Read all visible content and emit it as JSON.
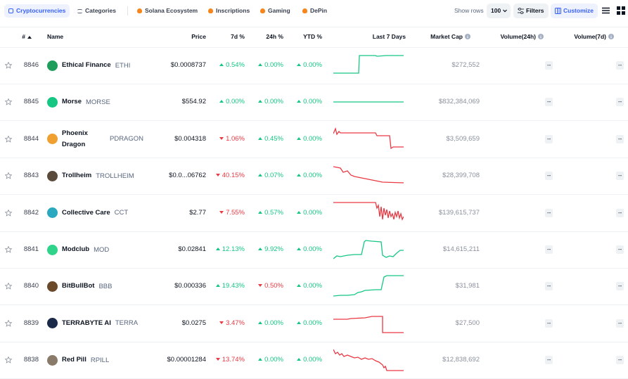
{
  "toolbar": {
    "tabs": [
      "Cryptocurrencies",
      "Categories",
      "Solana Ecosystem",
      "Inscriptions",
      "Gaming",
      "DePin"
    ],
    "show_rows_label": "Show rows",
    "rows_value": "100",
    "filters": "Filters",
    "customize": "Customize"
  },
  "header": [
    "#",
    "Name",
    "Price",
    "7d %",
    "24h %",
    "YTD %",
    "Last 7 Days",
    "Market Cap",
    "Volume(24h)",
    "Volume(7d)"
  ],
  "rows": [
    {
      "rank": "8846",
      "name": "Ethical Finance",
      "symbol": "ETHI",
      "price": "$0.0008737",
      "d7": "0.54%",
      "d7_dir": "up",
      "h24": "0.00%",
      "h24_dir": "up",
      "ytd": "0.00%",
      "ytd_dir": "up",
      "spark_color": "#16c784",
      "market_cap": "$272,552",
      "vol24h": "--",
      "vol7d": "--"
    },
    {
      "rank": "8845",
      "name": "Morse",
      "symbol": "MORSE",
      "price": "$554.92",
      "d7": "0.00%",
      "d7_dir": "up",
      "h24": "0.00%",
      "h24_dir": "up",
      "ytd": "0.00%",
      "ytd_dir": "up",
      "spark_color": "#16c784",
      "market_cap": "$832,384,069",
      "vol24h": "--",
      "vol7d": "--"
    },
    {
      "rank": "8844",
      "name": "Phoenix Dragon",
      "symbol": "PDRAGON",
      "price": "$0.004318",
      "d7": "1.06%",
      "d7_dir": "down",
      "h24": "0.45%",
      "h24_dir": "up",
      "ytd": "0.00%",
      "ytd_dir": "up",
      "spark_color": "#ea3943",
      "market_cap": "$3,509,659",
      "vol24h": "--",
      "vol7d": "--"
    },
    {
      "rank": "8843",
      "name": "Trollheim",
      "symbol": "TROLLHEIM",
      "price": "$0.0...06762",
      "d7": "40.15%",
      "d7_dir": "down",
      "h24": "0.07%",
      "h24_dir": "up",
      "ytd": "0.00%",
      "ytd_dir": "up",
      "spark_color": "#ea3943",
      "market_cap": "$28,399,708",
      "vol24h": "--",
      "vol7d": "--"
    },
    {
      "rank": "8842",
      "name": "Collective Care",
      "symbol": "CCT",
      "price": "$2.77",
      "d7": "7.55%",
      "d7_dir": "down",
      "h24": "0.57%",
      "h24_dir": "up",
      "ytd": "0.00%",
      "ytd_dir": "up",
      "spark_color": "#ea3943",
      "market_cap": "$139,615,737",
      "vol24h": "--",
      "vol7d": "--"
    },
    {
      "rank": "8841",
      "name": "Modclub",
      "symbol": "MOD",
      "price": "$0.02841",
      "d7": "12.13%",
      "d7_dir": "up",
      "h24": "9.92%",
      "h24_dir": "up",
      "ytd": "0.00%",
      "ytd_dir": "up",
      "spark_color": "#16c784",
      "market_cap": "$14,615,211",
      "vol24h": "--",
      "vol7d": "--"
    },
    {
      "rank": "8840",
      "name": "BitBullBot",
      "symbol": "BBB",
      "price": "$0.000336",
      "d7": "19.43%",
      "d7_dir": "up",
      "h24": "0.50%",
      "h24_dir": "down",
      "ytd": "0.00%",
      "ytd_dir": "up",
      "spark_color": "#16c784",
      "market_cap": "$31,981",
      "vol24h": "--",
      "vol7d": "--"
    },
    {
      "rank": "8839",
      "name": "TERRABYTE AI",
      "symbol": "TERRA",
      "price": "$0.0275",
      "d7": "3.47%",
      "d7_dir": "down",
      "h24": "0.00%",
      "h24_dir": "up",
      "ytd": "0.00%",
      "ytd_dir": "up",
      "spark_color": "#ea3943",
      "market_cap": "$27,500",
      "vol24h": "--",
      "vol7d": "--"
    },
    {
      "rank": "8838",
      "name": "Red Pill",
      "symbol": "RPILL",
      "price": "$0.00001284",
      "d7": "13.74%",
      "d7_dir": "down",
      "h24": "0.00%",
      "h24_dir": "up",
      "ytd": "0.00%",
      "ytd_dir": "up",
      "spark_color": "#ea3943",
      "market_cap": "$12,838,692",
      "vol24h": "--",
      "vol7d": "--"
    }
  ]
}
